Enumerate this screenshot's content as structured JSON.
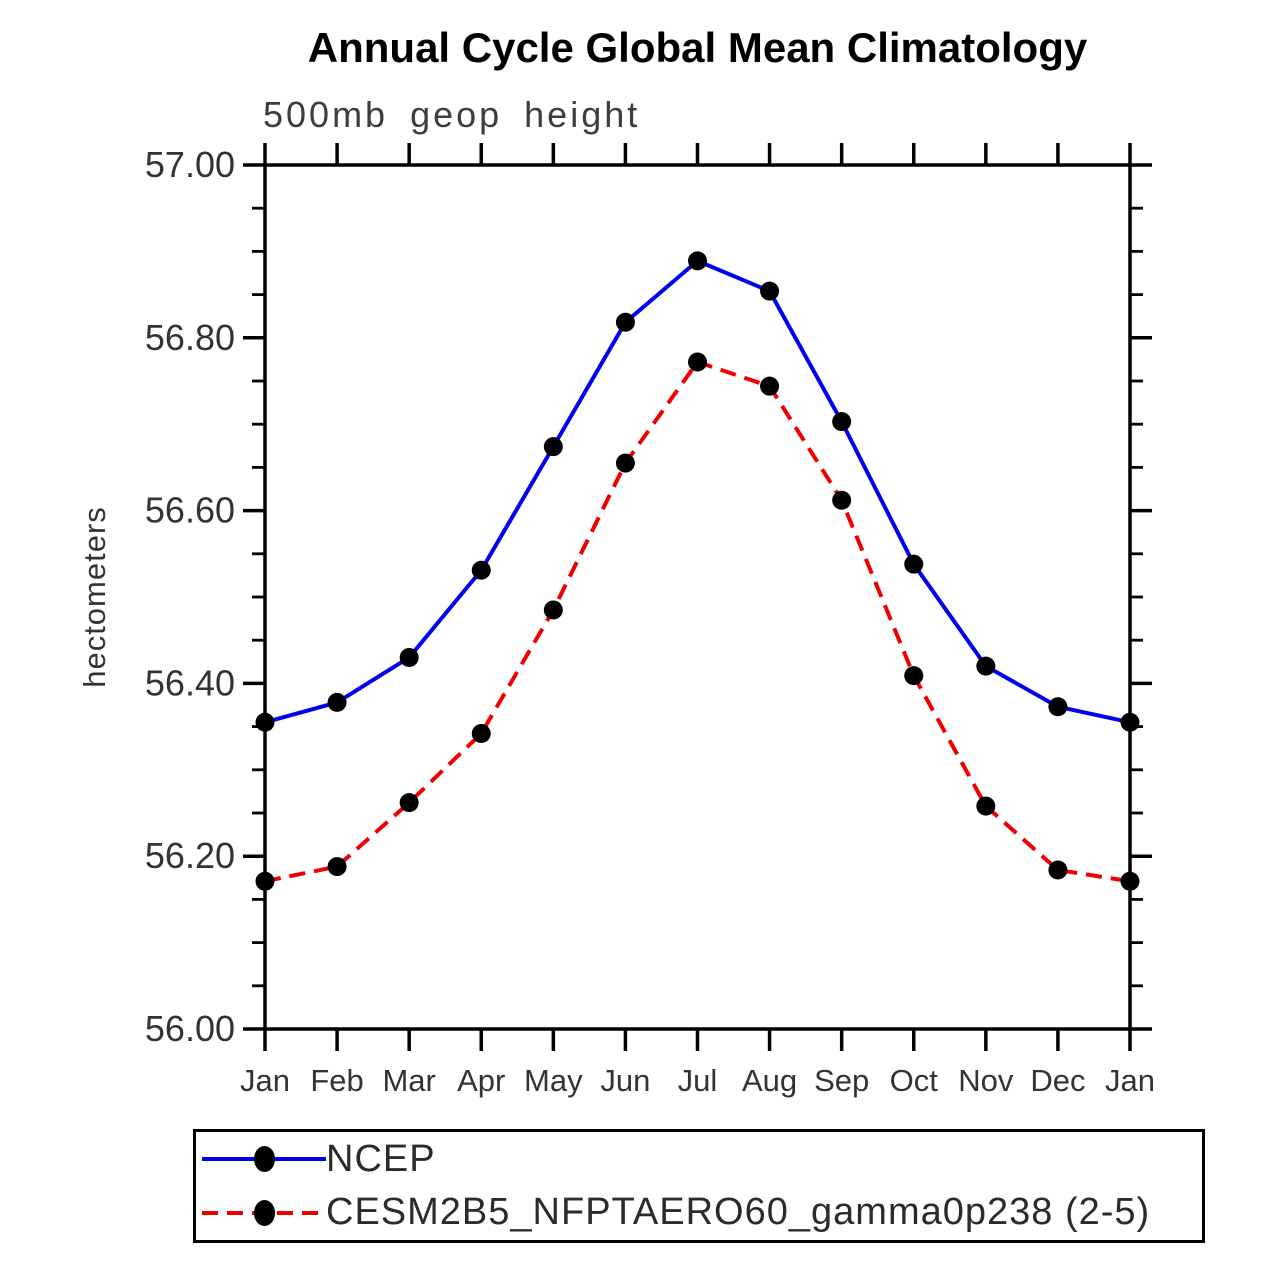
{
  "title": "Annual Cycle Global Mean Climatology",
  "subtitle": "500mb geop height",
  "ylabel": "hectometers",
  "colors": {
    "ncep_line": "#0000ee",
    "cesm_line": "#ee0000",
    "marker": "#000000",
    "axis": "#000000"
  },
  "legend": {
    "position": "bottom",
    "items": [
      {
        "label": "NCEP",
        "color": "#0000ee",
        "style": "solid",
        "marker": "circle"
      },
      {
        "label": "CESM2B5_NFPTAERO60_gamma0p238 (2-5)",
        "color": "#ee0000",
        "style": "dashed",
        "marker": "circle"
      }
    ]
  },
  "chart_data": {
    "type": "line",
    "title": "Annual Cycle Global Mean Climatology",
    "subtitle": "500mb geop height",
    "xlabel": "",
    "ylabel": "hectometers",
    "categories": [
      "Jan",
      "Feb",
      "Mar",
      "Apr",
      "May",
      "Jun",
      "Jul",
      "Aug",
      "Sep",
      "Oct",
      "Nov",
      "Dec",
      "Jan"
    ],
    "series": [
      {
        "name": "NCEP",
        "color": "#0000ee",
        "line_style": "solid",
        "marker": "circle",
        "values": [
          56.355,
          56.378,
          56.43,
          56.531,
          56.674,
          56.818,
          56.889,
          56.854,
          56.703,
          56.538,
          56.42,
          56.373,
          56.355
        ]
      },
      {
        "name": "CESM2B5_NFPTAERO60_gamma0p238 (2-5)",
        "color": "#ee0000",
        "line_style": "dashed",
        "marker": "circle",
        "values": [
          56.171,
          56.188,
          56.262,
          56.342,
          56.485,
          56.655,
          56.772,
          56.744,
          56.612,
          56.409,
          56.258,
          56.184,
          56.171
        ]
      }
    ],
    "ylim": [
      56.0,
      57.0
    ],
    "ytick_major_step": 0.2,
    "ytick_minor_step": 0.05,
    "ytick_labels": [
      "56.00",
      "56.20",
      "56.40",
      "56.60",
      "56.80",
      "57.00"
    ],
    "grid": false,
    "legend_position": "bottom"
  }
}
